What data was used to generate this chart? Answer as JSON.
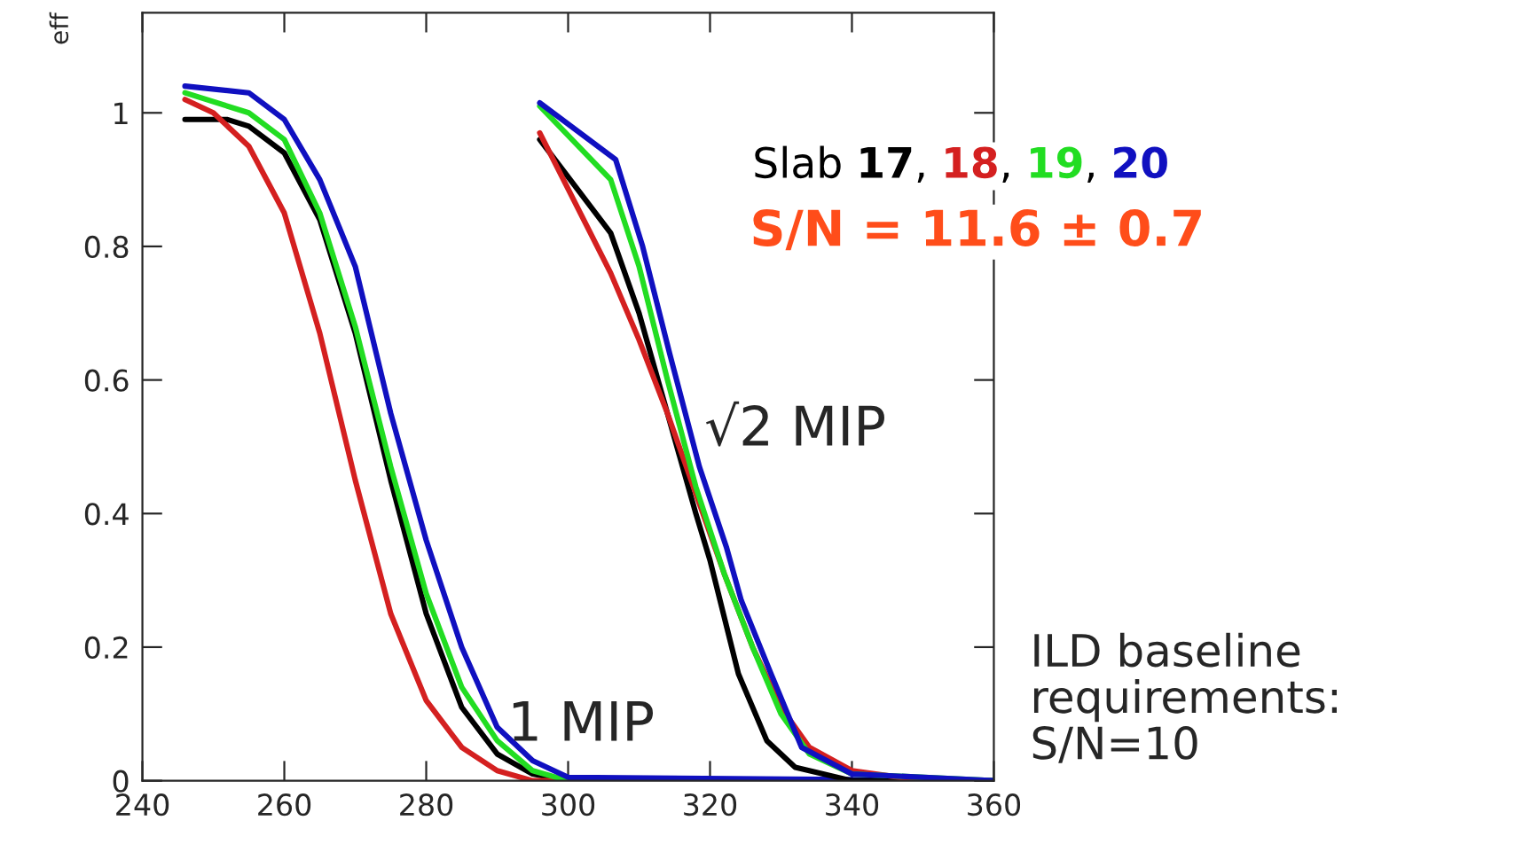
{
  "chart_data": {
    "type": "line",
    "ylabel": "eff",
    "xlim": [
      240,
      360
    ],
    "ylim": [
      0,
      1.15
    ],
    "xticks": [
      240,
      260,
      280,
      300,
      320,
      340,
      360
    ],
    "yticks": [
      0,
      0.2,
      0.4,
      0.6,
      0.8,
      1
    ],
    "grid": false,
    "marker": "none",
    "line_style": "solid",
    "series": [
      {
        "color": "#000000",
        "x": [
          246,
          252,
          255,
          260,
          265,
          270,
          275,
          280,
          285,
          290,
          295,
          300,
          360
        ],
        "values": [
          0.99,
          0.99,
          0.98,
          0.94,
          0.84,
          0.67,
          0.45,
          0.25,
          0.11,
          0.04,
          0.01,
          0,
          0
        ]
      },
      {
        "color": "#d42020",
        "x": [
          246,
          250,
          255,
          260,
          265,
          270,
          275,
          280,
          285,
          290,
          295,
          360
        ],
        "values": [
          1.02,
          1.0,
          0.95,
          0.85,
          0.67,
          0.45,
          0.25,
          0.12,
          0.05,
          0.015,
          0,
          0
        ]
      },
      {
        "color": "#22dd22",
        "x": [
          246,
          255,
          260,
          265,
          270,
          275,
          280,
          285,
          290,
          295,
          300,
          360
        ],
        "values": [
          1.03,
          1.0,
          0.96,
          0.85,
          0.68,
          0.47,
          0.28,
          0.14,
          0.06,
          0.015,
          0,
          0
        ]
      },
      {
        "color": "#1010c0",
        "x": [
          246,
          255,
          260,
          265,
          270,
          275,
          280,
          285,
          290,
          295,
          300,
          360
        ],
        "values": [
          1.04,
          1.03,
          0.99,
          0.9,
          0.77,
          0.55,
          0.36,
          0.2,
          0.08,
          0.03,
          0.005,
          0
        ]
      },
      {
        "color": "#000000",
        "x": [
          296,
          306,
          310,
          314,
          318,
          320,
          324,
          328,
          332,
          340,
          360
        ],
        "values": [
          0.96,
          0.82,
          0.7,
          0.55,
          0.4,
          0.33,
          0.16,
          0.06,
          0.02,
          0,
          0
        ]
      },
      {
        "color": "#d42020",
        "x": [
          296,
          306,
          310,
          314,
          318,
          322,
          326,
          330,
          334,
          340,
          350,
          360
        ],
        "values": [
          0.97,
          0.76,
          0.66,
          0.55,
          0.43,
          0.31,
          0.2,
          0.11,
          0.05,
          0.015,
          0,
          0
        ]
      },
      {
        "color": "#22dd22",
        "x": [
          296,
          306,
          310,
          314,
          318,
          322,
          326,
          330,
          334,
          340,
          360
        ],
        "values": [
          1.01,
          0.9,
          0.77,
          0.6,
          0.44,
          0.31,
          0.2,
          0.1,
          0.04,
          0.01,
          0
        ]
      },
      {
        "color": "#1010c0",
        "x": [
          296,
          306.7,
          310.5,
          314.3,
          318.5,
          322.3,
          324.4,
          328.6,
          332.9,
          340,
          360
        ],
        "values": [
          1.015,
          0.93,
          0.8,
          0.64,
          0.47,
          0.35,
          0.27,
          0.16,
          0.05,
          0.01,
          0
        ]
      }
    ],
    "annotations": [
      "1 MIP",
      "√2 MIP",
      "Slab 17, 18, 19, 20",
      "S/N = 11.6 ± 0.7",
      "ILD baseline\nrequirements:\nS/N=10"
    ]
  }
}
